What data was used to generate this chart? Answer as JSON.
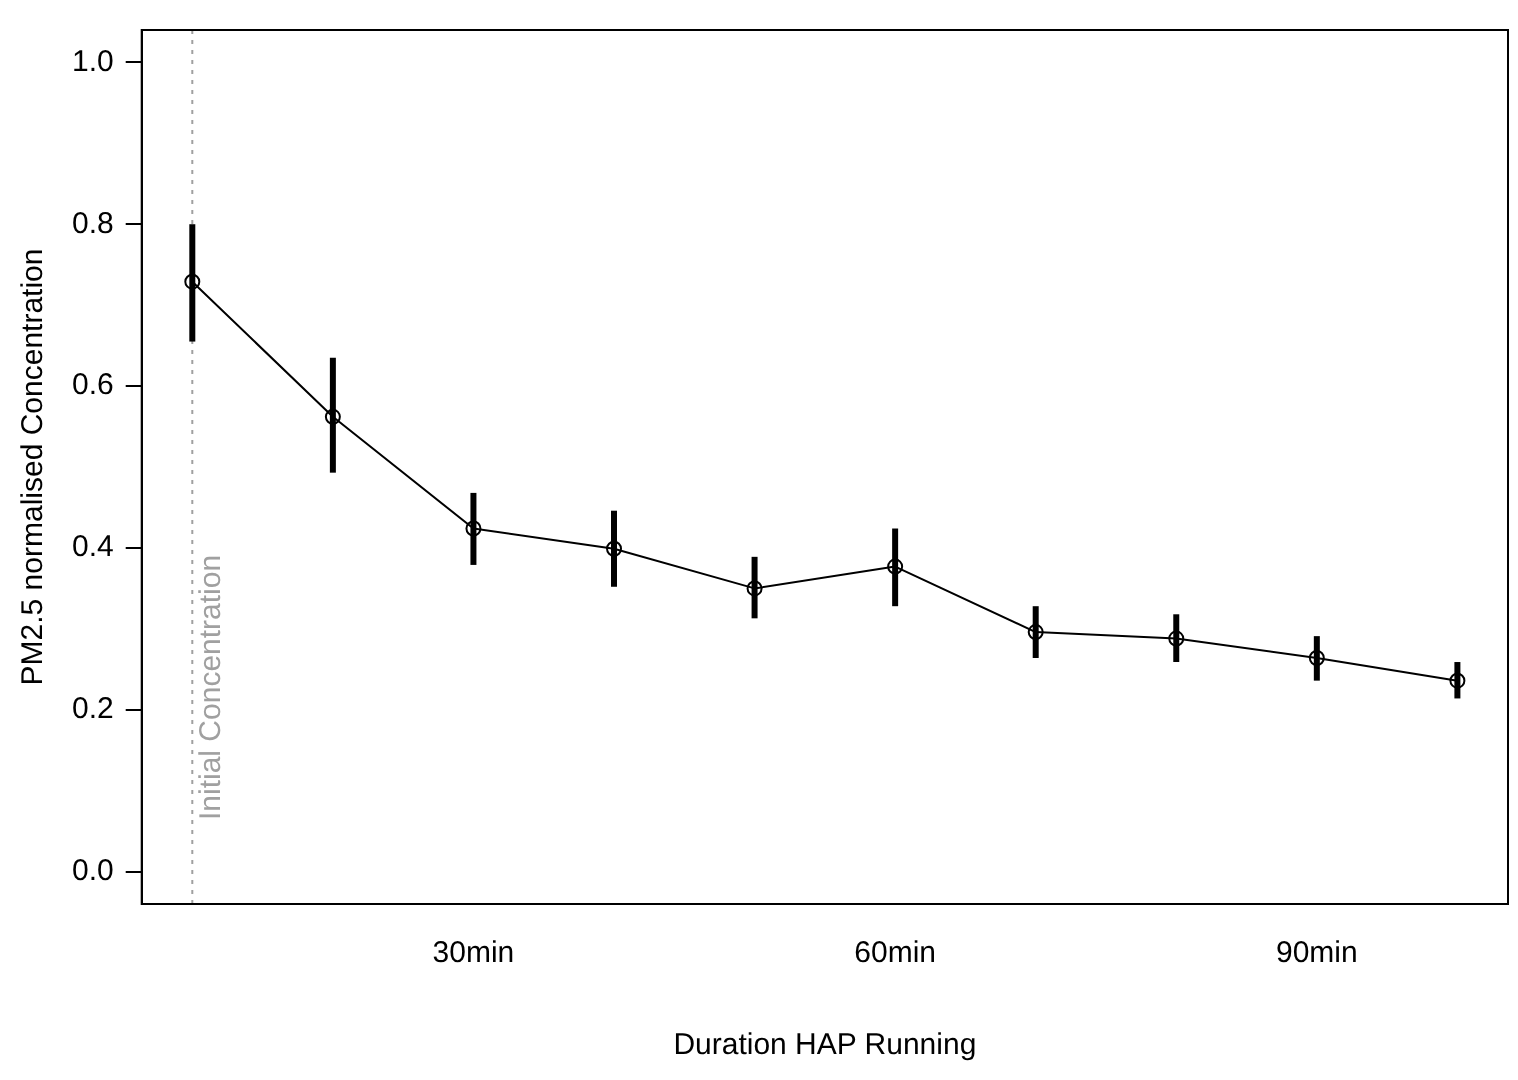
{
  "chart_data": {
    "type": "line",
    "xlabel": "Duration HAP Running",
    "ylabel": "PM2.5 normalised Concentration",
    "x": [
      10,
      20,
      30,
      40,
      50,
      60,
      70,
      80,
      90,
      100
    ],
    "series": [
      {
        "color": "#000000",
        "values": [
          0.729,
          0.562,
          0.424,
          0.399,
          0.35,
          0.377,
          0.296,
          0.288,
          0.264,
          0.236
        ],
        "errors": [
          [
            0.655,
            0.8
          ],
          [
            0.493,
            0.635
          ],
          [
            0.379,
            0.468
          ],
          [
            0.352,
            0.446
          ],
          [
            0.313,
            0.389
          ],
          [
            0.328,
            0.424
          ],
          [
            0.264,
            0.328
          ],
          [
            0.259,
            0.318
          ],
          [
            0.236,
            0.291
          ],
          [
            0.214,
            0.259
          ]
        ]
      }
    ],
    "xlim": [
      6.4,
      103.6
    ],
    "xticks": [
      {
        "value": 30,
        "label": "30min"
      },
      {
        "value": 60,
        "label": "60min"
      },
      {
        "value": 90,
        "label": "90min"
      }
    ],
    "ylim": [
      -0.04,
      1.04
    ],
    "yticks": [
      {
        "value": 0,
        "label": "0.0"
      },
      {
        "value": 0.2,
        "label": "0.2"
      },
      {
        "value": 0.4,
        "label": "0.4"
      },
      {
        "value": 0.6,
        "label": "0.6"
      },
      {
        "value": 0.8,
        "label": "0.8"
      },
      {
        "value": 1,
        "label": "1.0"
      }
    ],
    "ref_lines": [
      {
        "axis": "x",
        "value": 10,
        "label": "Initial Concentration",
        "color": "#a0a0a0",
        "line_style": "dotted"
      }
    ],
    "grid": false,
    "legend": false,
    "marker": "circle",
    "line_style": "solid"
  }
}
